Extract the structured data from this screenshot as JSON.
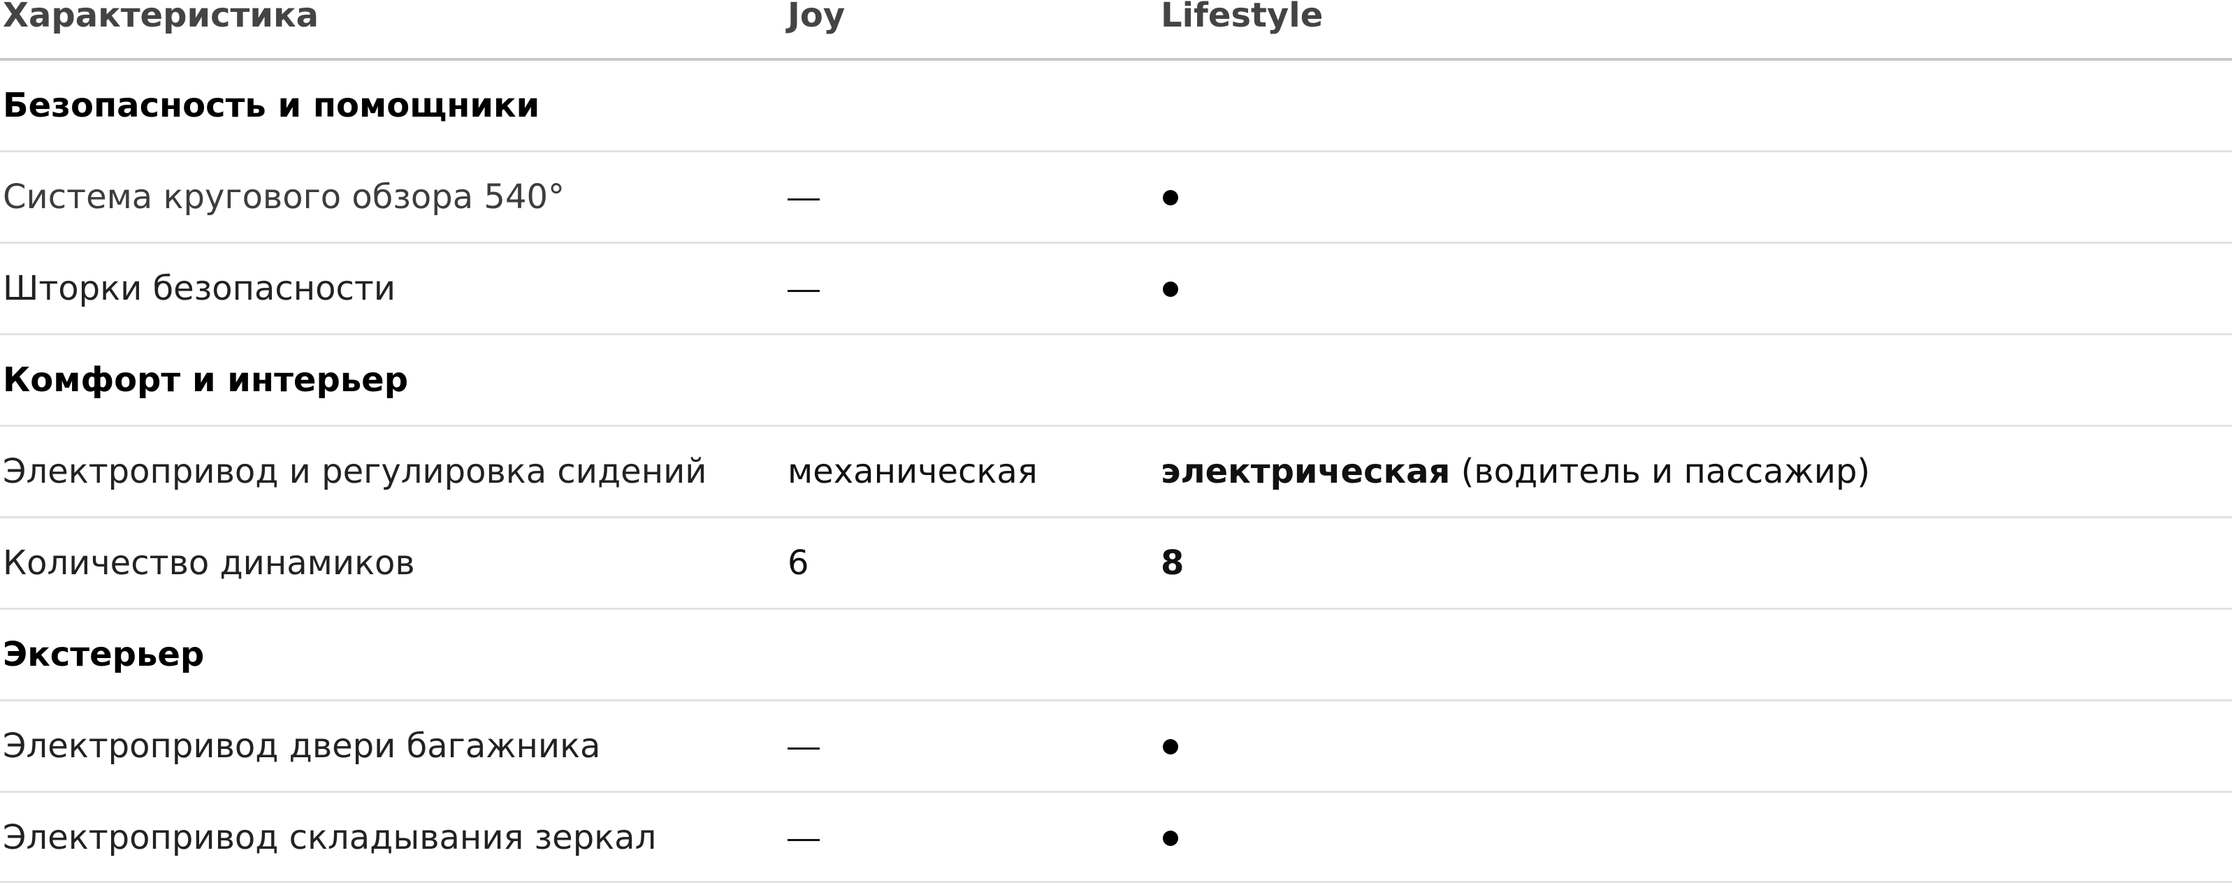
{
  "header": {
    "col1": "Характеристика",
    "col2": "Joy",
    "col3": "Lifestyle"
  },
  "rows": {
    "sec_safety": {
      "title": "Безопасность и помощники"
    },
    "surround": {
      "name": "Система кругового обзора 540°",
      "joy": "—",
      "lifestyle": "•"
    },
    "curtains": {
      "name": "Шторки безопасности",
      "joy": "—",
      "lifestyle": "•"
    },
    "sec_comfort": {
      "title": "Комфорт и интерьер"
    },
    "seats": {
      "name": "Электропривод и регулировка сидений",
      "joy": "механическая",
      "lifestyle_strong": "электрическая",
      "lifestyle_rest": " (водитель и пассажир)"
    },
    "speakers": {
      "name": "Количество динамиков",
      "joy": "6",
      "lifestyle": "8"
    },
    "sec_exterior": {
      "title": "Экстерьер"
    },
    "tailgate": {
      "name": "Электропривод двери багажника",
      "joy": "—",
      "lifestyle": "•"
    },
    "mirrors": {
      "name": "Электропривод складывания зеркал",
      "joy": "—",
      "lifestyle": "•"
    }
  },
  "icons": {
    "included": "filled-dot-icon",
    "not_included": "dash-icon"
  }
}
